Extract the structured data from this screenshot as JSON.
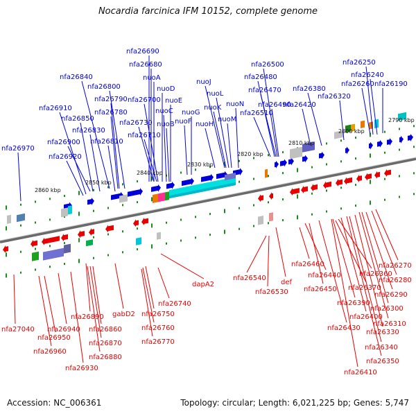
{
  "title": "Nocardia farcinica IFM 10152, complete genome",
  "footer": {
    "accession": "Accession: NC_006361",
    "summary": "Topology: circular; Length: 6,021,225 bp; Genes: 5,747"
  },
  "colors": {
    "forward": "#0000d8",
    "reverse": "#e80000",
    "backbone": "#808080",
    "tick": "#1a8a1a"
  },
  "scale": [
    "2790 kbp",
    "2800 kbp",
    "2810 kbp",
    "2820 kbp",
    "2830 kbp",
    "2840 kbp",
    "2850 kbp",
    "2860 kbp"
  ],
  "forward_labels": [
    "nfa26690",
    "nfa26680",
    "nuoA",
    "nfa26840",
    "nfa26800",
    "nuoD",
    "nfa26700",
    "nuoE",
    "nfa26790",
    "nuoC",
    "nfa26780",
    "nfa26910",
    "nfa26850",
    "nuoG",
    "nuoB",
    "nfa26730",
    "nuoF",
    "nfa26830",
    "nfa26710",
    "nfa26900",
    "nfa26810",
    "nfa26970",
    "nfa26920",
    "nuoJ",
    "nuoL",
    "nuoK",
    "nuoH",
    "nuoN",
    "nuoM",
    "nfa26500",
    "nfa26480",
    "nfa26470",
    "nfa26490",
    "nfa26510",
    "nfa26380",
    "nfa26420",
    "nfa26320",
    "nfa26250",
    "nfa26240",
    "nfa26260",
    "nfa26190"
  ],
  "reverse_labels": [
    "nfa27040",
    "nfa26940",
    "nfa26950",
    "nfa26960",
    "nfa26930",
    "nfa26890",
    "nfa26860",
    "nfa26870",
    "nfa26880",
    "gabD2",
    "nfa26740",
    "nfa26750",
    "nfa26760",
    "nfa26770",
    "dapA2",
    "nfa26540",
    "nfa26530",
    "def",
    "nfa26460",
    "nfa26440",
    "nfa26450",
    "nfa26430",
    "nfa26410",
    "nfa26360",
    "nfa26370",
    "nfa26390",
    "nfa26400",
    "nfa26350",
    "nfa26340",
    "nfa26330",
    "nfa26310",
    "nfa26300",
    "nfa26290",
    "nfa26280",
    "nfa26270"
  ]
}
